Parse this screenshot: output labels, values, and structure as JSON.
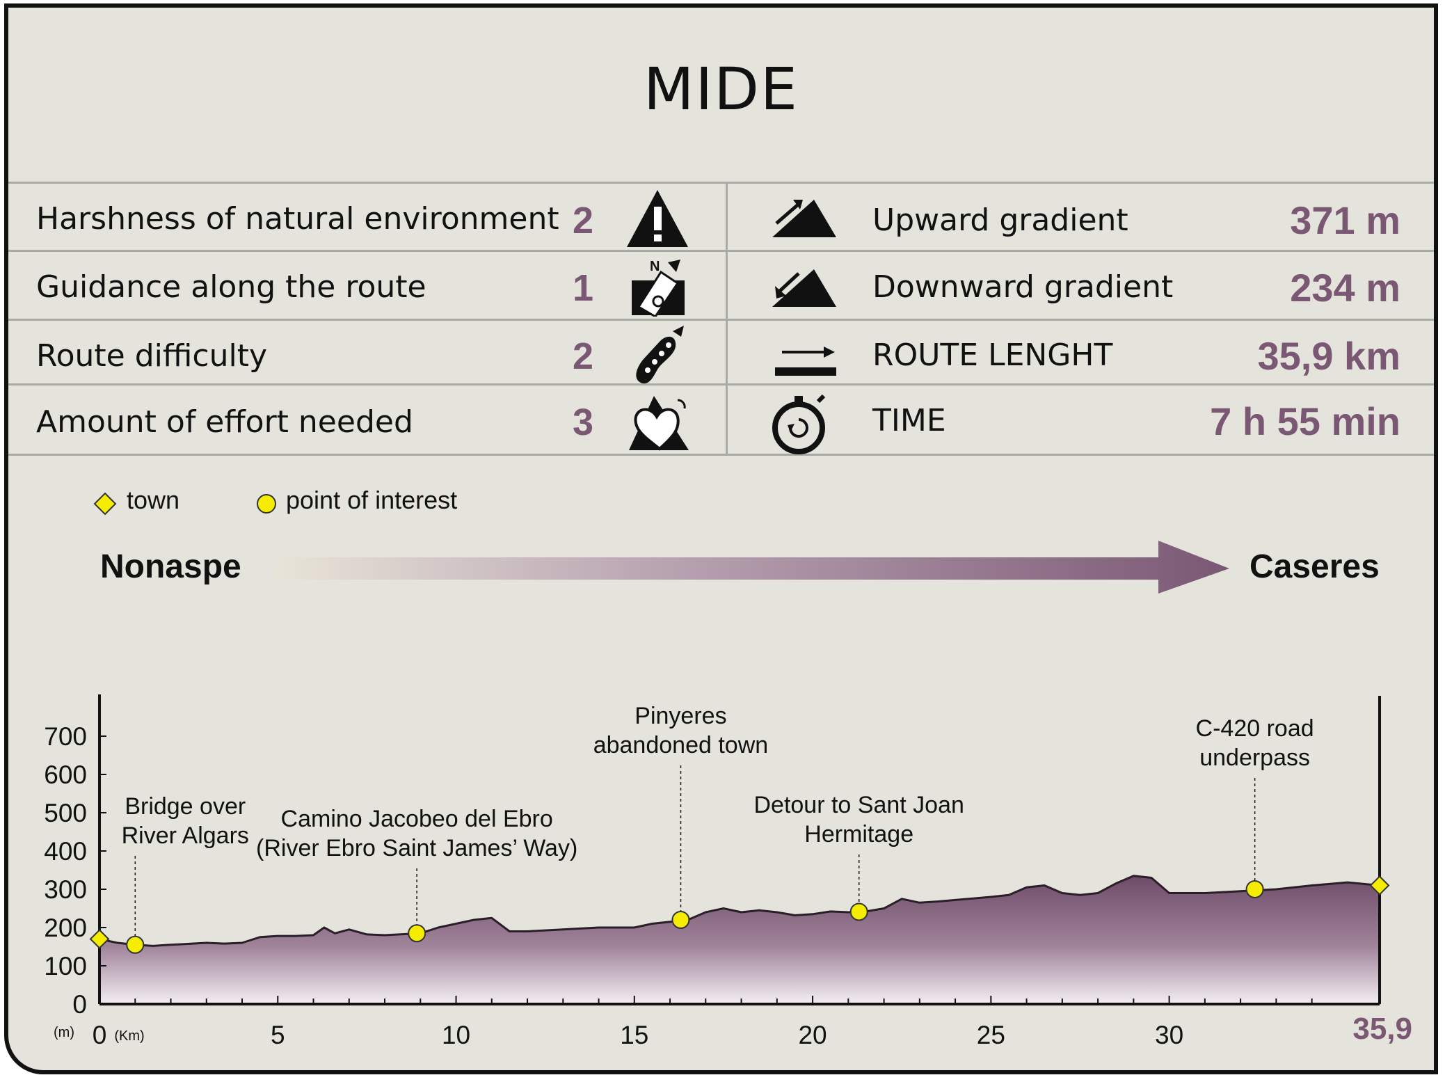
{
  "header": {
    "title": "MIDE"
  },
  "mide": [
    {
      "label": "Harshness of natural environment",
      "score": "2",
      "icon": "warning-icon"
    },
    {
      "label": "Guidance along the route",
      "score": "1",
      "icon": "compass-icon"
    },
    {
      "label": "Route difficulty",
      "score": "2",
      "icon": "footprint-icon"
    },
    {
      "label": "Amount of effort needed",
      "score": "3",
      "icon": "heart-mountain-icon"
    }
  ],
  "stats": [
    {
      "label": "Upward gradient",
      "value": "371 m",
      "icon": "upward-gradient-icon"
    },
    {
      "label": "Downward gradient",
      "value": "234 m",
      "icon": "downward-gradient-icon"
    },
    {
      "label": "ROUTE LENGHT",
      "value": "35,9 km",
      "icon": "route-length-icon"
    },
    {
      "label": "TIME",
      "value": "7 h 55 min",
      "icon": "stopwatch-icon"
    }
  ],
  "legend": {
    "town": "town",
    "poi": "point of interest"
  },
  "route": {
    "start": "Nonaspe",
    "end": "Caseres"
  },
  "colors": {
    "accent": "#7a5874",
    "profile_fill_top": "#6e4c68",
    "marker": "#f5ec00",
    "background": "#e4e4dc"
  },
  "chart_data": {
    "type": "area",
    "xlabel": "(Km)",
    "ylabel": "(m)",
    "xlim": [
      0,
      35.9
    ],
    "ylim": [
      0,
      700
    ],
    "xticks": [
      "0",
      "5",
      "10",
      "15",
      "20",
      "25",
      "30"
    ],
    "xtick_values": [
      0,
      5,
      10,
      15,
      20,
      25,
      30
    ],
    "xend_label": "35,9",
    "yticks": [
      "0",
      "100",
      "200",
      "300",
      "400",
      "500",
      "600",
      "700"
    ],
    "ytick_values": [
      0,
      100,
      200,
      300,
      400,
      500,
      600,
      700
    ],
    "profile": {
      "x": [
        0,
        0.5,
        1,
        1.5,
        2,
        3,
        3.5,
        4,
        4.5,
        5,
        5.5,
        6,
        6.3,
        6.6,
        7,
        7.5,
        8,
        9,
        9.5,
        10,
        10.5,
        11,
        11.5,
        12,
        13,
        14,
        15,
        15.5,
        16,
        16.5,
        17,
        17.5,
        18,
        18.5,
        19,
        19.5,
        20,
        20.5,
        21,
        21.5,
        22,
        22.5,
        23,
        23.5,
        24,
        25,
        25.5,
        26,
        26.5,
        27,
        27.5,
        28,
        28.5,
        29,
        29.5,
        30,
        31,
        32,
        33,
        34,
        35,
        35.9
      ],
      "y": [
        170,
        160,
        155,
        152,
        155,
        160,
        158,
        160,
        175,
        178,
        178,
        180,
        200,
        185,
        195,
        182,
        180,
        185,
        200,
        210,
        220,
        225,
        190,
        190,
        195,
        200,
        200,
        210,
        215,
        220,
        240,
        250,
        240,
        245,
        240,
        232,
        235,
        242,
        240,
        242,
        250,
        275,
        265,
        268,
        272,
        280,
        285,
        305,
        310,
        290,
        285,
        290,
        315,
        335,
        330,
        290,
        290,
        295,
        300,
        310,
        318,
        310
      ]
    },
    "towns": [
      {
        "x": 0,
        "y": 170
      },
      {
        "x": 35.9,
        "y": 310
      }
    ],
    "points_of_interest": [
      {
        "x": 1.0,
        "y": 155,
        "label": [
          "Bridge over",
          "River Algars"
        ]
      },
      {
        "x": 8.9,
        "y": 185,
        "label": [
          "Camino Jacobeo del Ebro",
          "(River Ebro Saint James’ Way)"
        ]
      },
      {
        "x": 16.3,
        "y": 220,
        "label": [
          "Pinyeres",
          "abandoned town"
        ]
      },
      {
        "x": 21.3,
        "y": 241,
        "label": [
          "Detour to Sant Joan",
          "Hermitage"
        ]
      },
      {
        "x": 32.4,
        "y": 300,
        "label": [
          "C-420 road",
          "underpass"
        ]
      }
    ]
  }
}
